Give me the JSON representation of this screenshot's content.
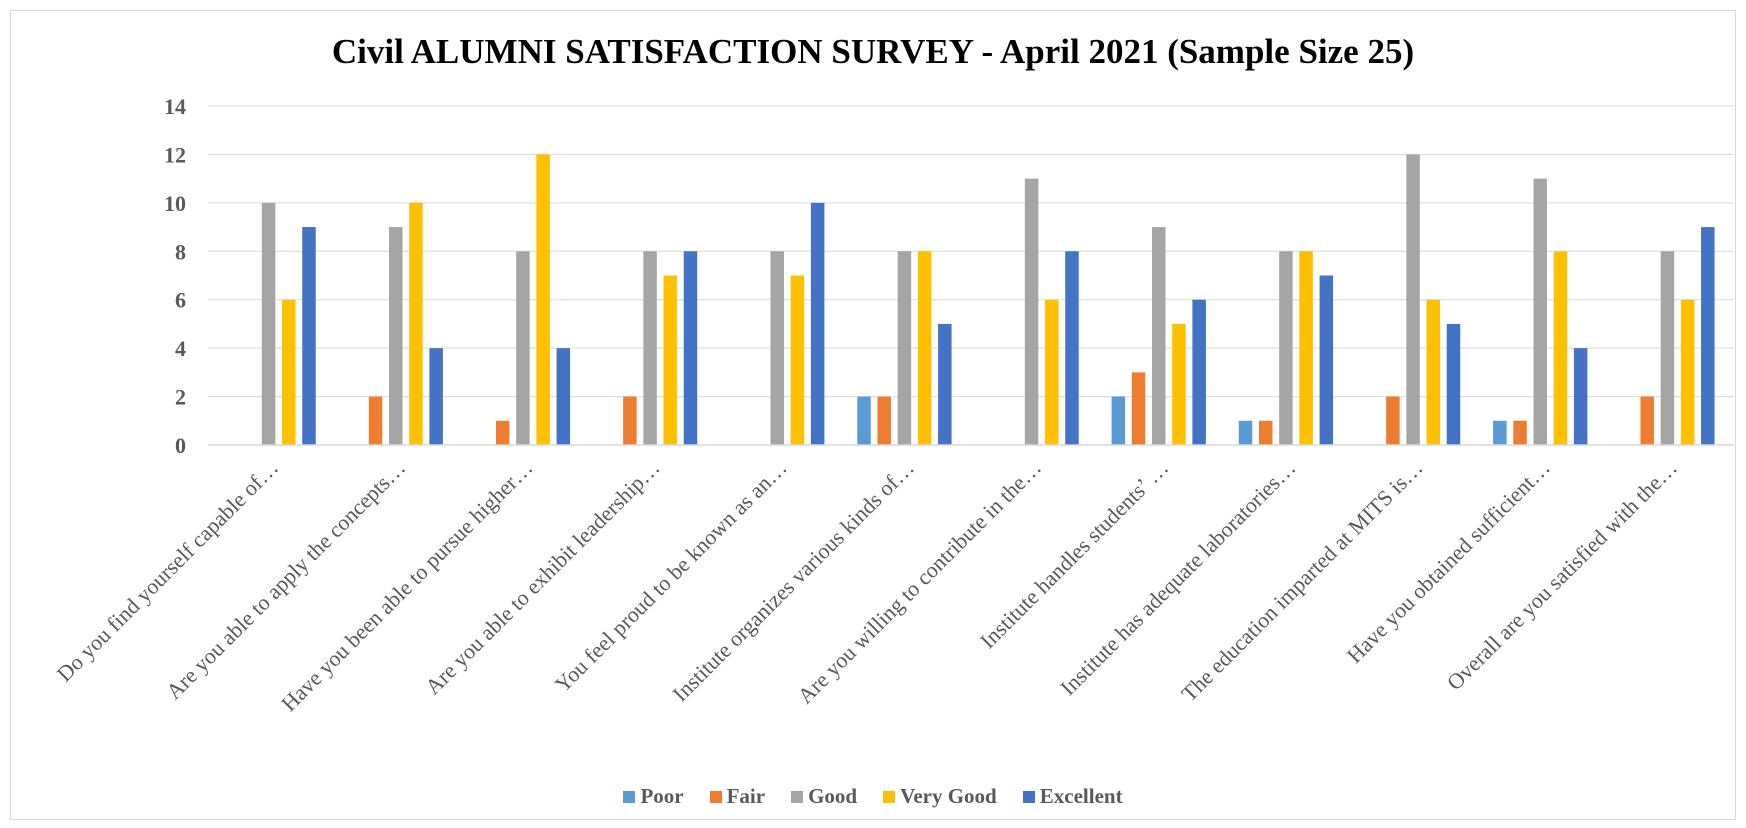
{
  "chart_data": {
    "type": "bar",
    "title": "Civil ALUMNI SATISFACTION SURVEY - April 2021 (Sample Size 25)",
    "xlabel": "",
    "ylabel": "",
    "ylim": [
      0,
      14
    ],
    "yticks": [
      0,
      2,
      4,
      6,
      8,
      10,
      12,
      14
    ],
    "grid": true,
    "legend_position": "bottom",
    "categories": [
      "Do you find yourself capable of…",
      "Are you able to apply the concepts…",
      "Have you been able to pursue higher…",
      "Are you able to exhibit leadership…",
      "You feel proud to be known as an…",
      "Institute organizes various kinds of…",
      "Are you willing to contribute in the…",
      "Institute handles students’ …",
      "Institute has adequate laboratories…",
      "The education imparted at MITS is…",
      "Have you obtained sufficient…",
      "Overall are you satisfied with the…"
    ],
    "series": [
      {
        "name": "Poor",
        "color": "#5b9bd5",
        "values": [
          0,
          0,
          0,
          0,
          0,
          2,
          0,
          2,
          1,
          0,
          1,
          0
        ]
      },
      {
        "name": "Fair",
        "color": "#ed7d31",
        "values": [
          0,
          2,
          1,
          2,
          0,
          2,
          0,
          3,
          1,
          2,
          1,
          2
        ]
      },
      {
        "name": "Good",
        "color": "#a5a5a5",
        "values": [
          10,
          9,
          8,
          8,
          8,
          8,
          11,
          9,
          8,
          12,
          11,
          8
        ]
      },
      {
        "name": "Very Good",
        "color": "#ffc000",
        "values": [
          6,
          10,
          12,
          7,
          7,
          8,
          6,
          5,
          8,
          6,
          8,
          6
        ]
      },
      {
        "name": "Excellent",
        "color": "#4472c4",
        "values": [
          9,
          4,
          4,
          8,
          10,
          5,
          8,
          6,
          7,
          5,
          4,
          9
        ]
      }
    ]
  }
}
